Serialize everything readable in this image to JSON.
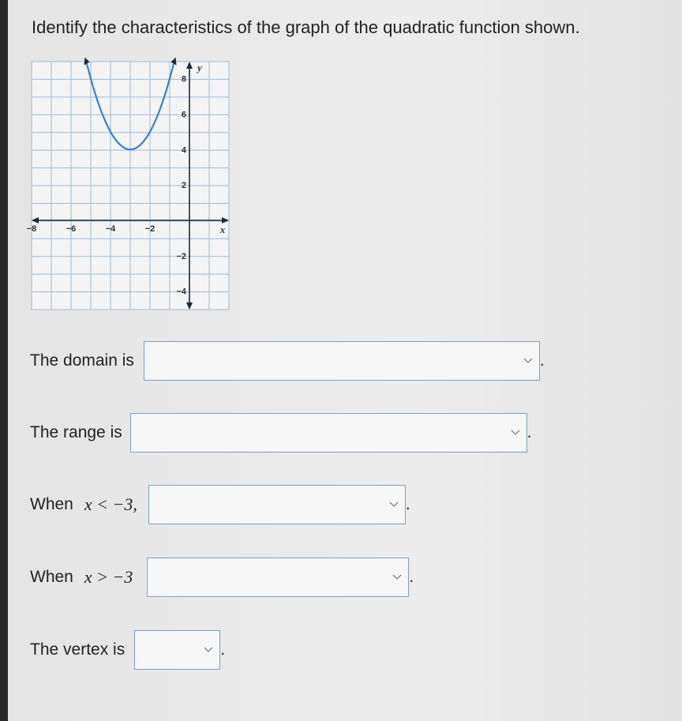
{
  "header": {
    "title": "Identify the characteristics of the graph of the quadratic function shown."
  },
  "graph": {
    "x_label": "x",
    "y_label": "y",
    "x_ticks": [
      "−8",
      "−6",
      "−4",
      "−2"
    ],
    "y_ticks": [
      "8",
      "6",
      "4",
      "2",
      "−2",
      "−4"
    ]
  },
  "questions": [
    {
      "before": "The domain is",
      "after": "."
    },
    {
      "before": "The range is",
      "after": "."
    },
    {
      "before": "When",
      "math": "x < −3,",
      "after": "."
    },
    {
      "before": "When",
      "math": "x > −3",
      "after": "."
    },
    {
      "before": "The vertex is",
      "after": "."
    }
  ]
}
